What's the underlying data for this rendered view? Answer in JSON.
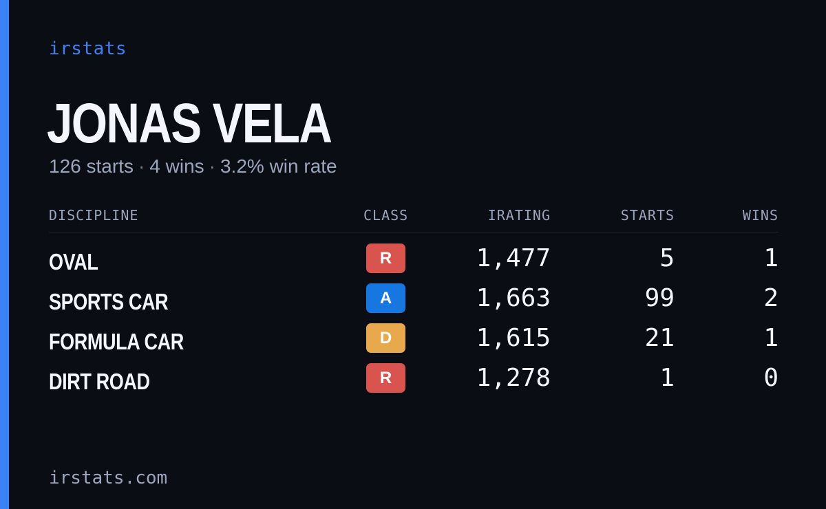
{
  "brand": "irstats",
  "colors": {
    "accent": "#3b82f6",
    "background": "#0b0d14",
    "class_R": "#d9534f",
    "class_A": "#1677e0",
    "class_D": "#e8a94d"
  },
  "player": {
    "name": "JONAS VELA",
    "summary": {
      "starts": "126 starts",
      "wins": "4 wins",
      "win_rate": "3.2% win rate",
      "separator": "·"
    }
  },
  "table": {
    "headers": {
      "discipline": "DISCIPLINE",
      "class": "CLASS",
      "irating": "IRATING",
      "starts": "STARTS",
      "wins": "WINS"
    },
    "rows": [
      {
        "discipline": "OVAL",
        "class": "R",
        "irating": "1,477",
        "starts": "5",
        "wins": "1"
      },
      {
        "discipline": "SPORTS CAR",
        "class": "A",
        "irating": "1,663",
        "starts": "99",
        "wins": "2"
      },
      {
        "discipline": "FORMULA CAR",
        "class": "D",
        "irating": "1,615",
        "starts": "21",
        "wins": "1"
      },
      {
        "discipline": "DIRT ROAD",
        "class": "R",
        "irating": "1,278",
        "starts": "1",
        "wins": "0"
      }
    ]
  },
  "footer": {
    "url": "irstats.com"
  }
}
